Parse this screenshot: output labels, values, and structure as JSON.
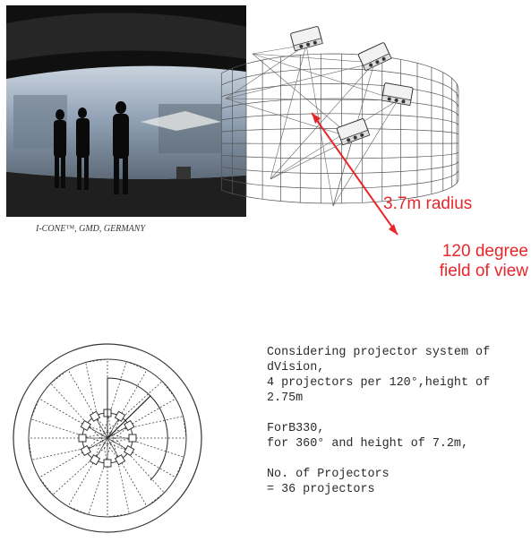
{
  "photo": {
    "caption": "I-CONE™, GMD, GERMANY",
    "colors": {
      "dark": "#151515",
      "screen": "#9fb0c4",
      "floor": "#2b2b2b"
    }
  },
  "wireframe": {
    "radius_label": "3.7m radius",
    "fov_label_line1": "120 degree",
    "fov_label_line2": "field of view",
    "accent_color": "#e8262a",
    "projector_count_drawn": 4
  },
  "plan": {
    "projector_count_drawn": 12
  },
  "notes": {
    "line1": "Considering projector system of\ndVision,\n4 projectors per 120°,height of\n2.75m",
    "line2": "ForB330,\nfor 360° and height of 7.2m,",
    "line3": "No. of Projectors\n= 36 projectors"
  }
}
